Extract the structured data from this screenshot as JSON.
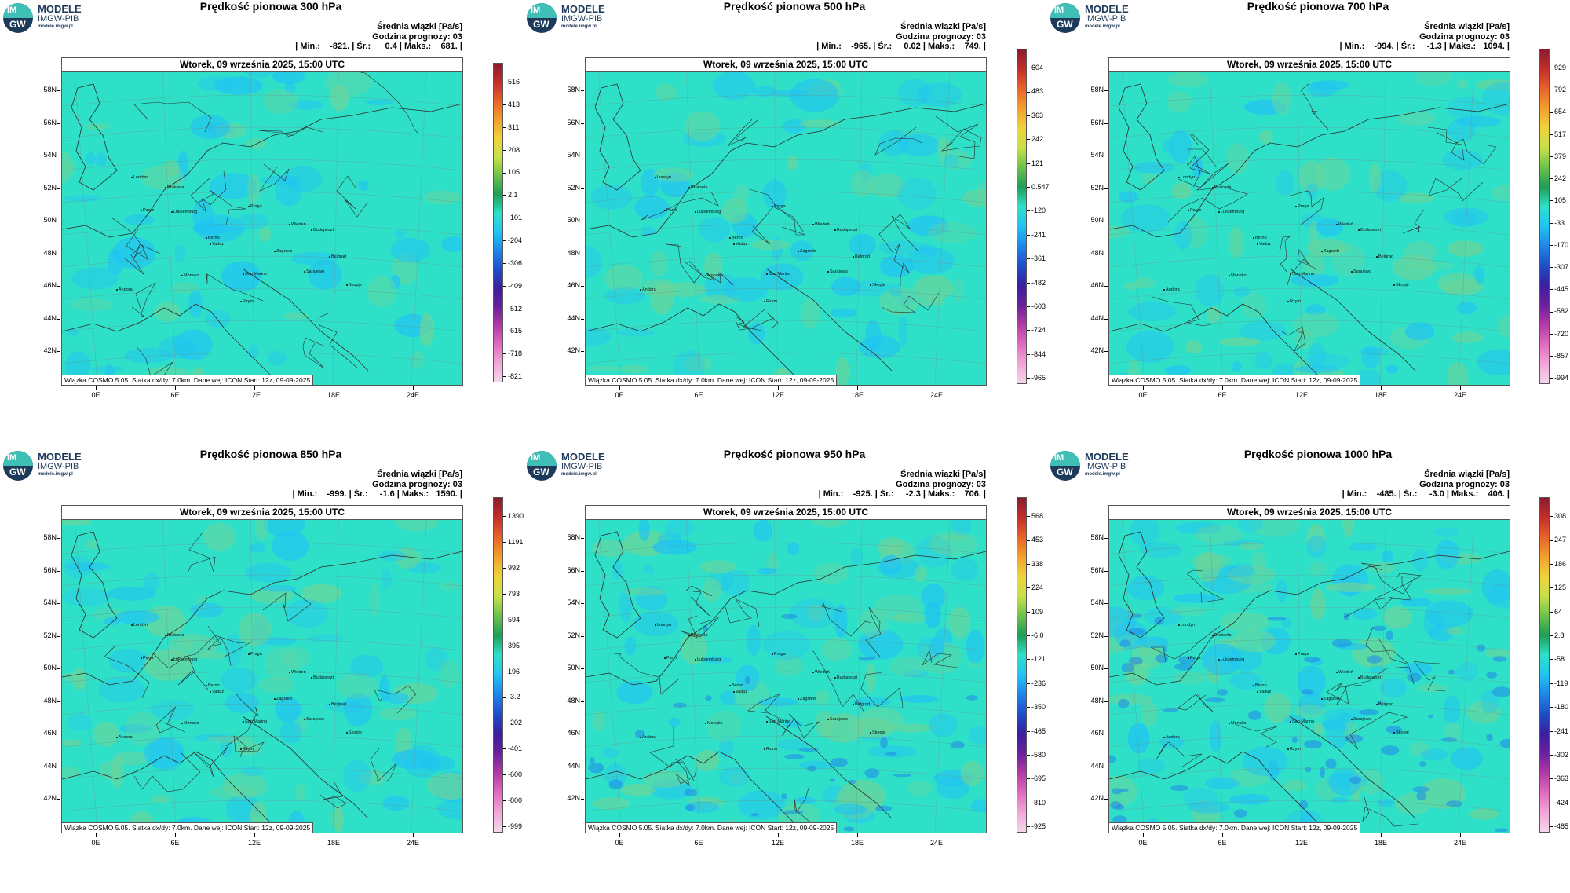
{
  "logo": {
    "badge_top": "IM",
    "badge_bottom": "GW",
    "line1": "MODELE",
    "line2": "IMGW-PIB",
    "line3": "modele.imgw.pl"
  },
  "common": {
    "mean_label": "Średnia wiązki [Pa/s]",
    "forecast_hour": "Godzina prognozy: 03",
    "date": "Wtorek, 09 września 2025, 15:00 UTC",
    "footer": "Wiązka COSMO 5.05. Siatka dx/dy: 7.0km. Dane wej: ICON Start: 12z, 09-09-2025",
    "lat_labels": [
      "58N",
      "56N",
      "54N",
      "52N",
      "50N",
      "48N",
      "46N",
      "44N",
      "42N"
    ],
    "lon_labels": [
      "0E",
      "6E",
      "12E",
      "18E",
      "24E"
    ],
    "cities": [
      "Londyn",
      "Bruksela",
      "Paryż",
      "Luksemburg",
      "Praga",
      "Wiedeń",
      "Budapeszt",
      "Berno",
      "Vaduz",
      "Zagrzeb",
      "Belgrad",
      "Monako",
      "San Marino",
      "Sarajewo",
      "Andora",
      "Rzym",
      "Skopje"
    ]
  },
  "colors": {
    "field_base": "#2fe0c9",
    "field_blue": "#22c4f2",
    "field_green": "#6bd49a",
    "field_deep": "#1f86ea",
    "border": "#2b2b2b"
  },
  "panels": [
    {
      "title": "Prędkość pionowa 300 hPa",
      "stats": "| Min.:    -821. | Śr.:      0.4 | Maks.:    681. |",
      "colorbar_ticks": [
        "516",
        "413",
        "311",
        "208",
        "105",
        "2.1",
        "-101",
        "-204",
        "-306",
        "-409",
        "-512",
        "-615",
        "-718",
        "-821"
      ]
    },
    {
      "title": "Prędkość pionowa 500 hPa",
      "stats": "| Min.:    -965. | Śr.:     0.02 | Maks.:    749. |",
      "colorbar_ticks": [
        "604",
        "483",
        "363",
        "242",
        "121",
        "0.547",
        "-120",
        "-241",
        "-361",
        "-482",
        "-603",
        "-724",
        "-844",
        "-965"
      ]
    },
    {
      "title": "Prędkość pionowa 700 hPa",
      "stats": "| Min.:    -994. | Śr.:     -1.3 | Maks.:   1094. |",
      "colorbar_ticks": [
        "929",
        "792",
        "654",
        "517",
        "379",
        "242",
        "105",
        "-33",
        "-170",
        "-307",
        "-445",
        "-582",
        "-720",
        "-857",
        "-994"
      ]
    },
    {
      "title": "Prędkość pionowa 850 hPa",
      "stats": "| Min.:    -999. | Śr.:     -1.6 | Maks.:   1590. |",
      "colorbar_ticks": [
        "1390",
        "1191",
        "992",
        "793",
        "594",
        "395",
        "196",
        "-3.2",
        "-202",
        "-401",
        "-600",
        "-800",
        "-999"
      ]
    },
    {
      "title": "Prędkość pionowa 950 hPa",
      "stats": "| Min.:    -925. | Śr.:     -2.3 | Maks.:    706. |",
      "colorbar_ticks": [
        "568",
        "453",
        "338",
        "224",
        "109",
        "-6.0",
        "-121",
        "-236",
        "-350",
        "-465",
        "-580",
        "-695",
        "-810",
        "-925"
      ]
    },
    {
      "title": "Prędkość pionowa 1000 hPa",
      "stats": "| Min.:    -485. | Śr.:     -3.0 | Maks.:    406. |",
      "colorbar_ticks": [
        "308",
        "247",
        "186",
        "125",
        "64",
        "2.8",
        "-58",
        "-119",
        "-180",
        "-241",
        "-302",
        "-363",
        "-424",
        "-485"
      ]
    }
  ]
}
